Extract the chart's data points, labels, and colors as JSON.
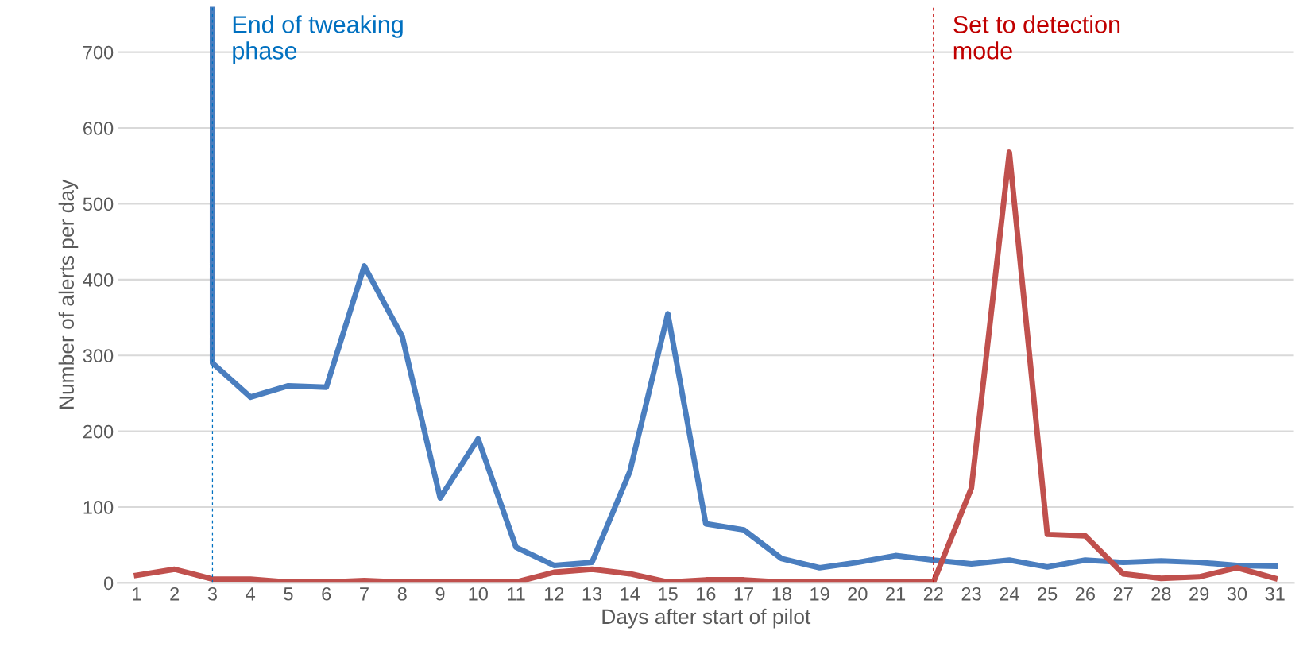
{
  "chart_data": {
    "type": "line",
    "xlabel": "Days after start of pilot",
    "ylabel": "Number of alerts per day",
    "x": [
      1,
      2,
      3,
      4,
      5,
      6,
      7,
      8,
      9,
      10,
      11,
      12,
      13,
      14,
      15,
      16,
      17,
      18,
      19,
      20,
      21,
      22,
      23,
      24,
      25,
      26,
      27,
      28,
      29,
      30,
      31
    ],
    "series": [
      {
        "color": "#4a7ebf",
        "x": [
          3,
          3,
          4,
          5,
          6,
          7,
          8,
          9,
          10,
          11,
          12,
          13,
          14,
          15,
          16,
          17,
          18,
          19,
          20,
          21,
          22,
          23,
          24,
          25,
          26,
          27,
          28,
          29,
          30,
          31
        ],
        "values": [
          760,
          290,
          245,
          260,
          258,
          418,
          325,
          112,
          190,
          47,
          23,
          27,
          147,
          355,
          78,
          70,
          32,
          20,
          27,
          36,
          30,
          25,
          30,
          21,
          30,
          27,
          29,
          27,
          23,
          22
        ]
      },
      {
        "color": "#c0504d",
        "values": [
          10,
          18,
          5,
          5,
          1,
          1,
          3,
          1,
          1,
          1,
          1,
          14,
          18,
          12,
          1,
          4,
          4,
          1,
          1,
          1,
          2,
          1,
          125,
          568,
          64,
          62,
          12,
          6,
          8,
          20,
          6
        ]
      }
    ],
    "xlim": [
      0.5,
      31.5
    ],
    "xticks": [
      1,
      2,
      3,
      4,
      5,
      6,
      7,
      8,
      9,
      10,
      11,
      12,
      13,
      14,
      15,
      16,
      17,
      18,
      19,
      20,
      21,
      22,
      23,
      24,
      25,
      26,
      27,
      28,
      29,
      30,
      31
    ],
    "ylim": [
      0,
      760
    ],
    "yticks": [
      0,
      100,
      200,
      300,
      400,
      500,
      600,
      700
    ],
    "ref_lines": [
      {
        "axis": "x",
        "value": 3,
        "label": "End of tweaking\nphase",
        "color": "#0070c0",
        "line_style": "dashed"
      },
      {
        "axis": "x",
        "value": 22,
        "label": "Set to detection\nmode",
        "color": "#c00000",
        "line_style": "dashed"
      }
    ],
    "grid": "y",
    "legend": false,
    "marker": "none",
    "line_style": "solid"
  }
}
